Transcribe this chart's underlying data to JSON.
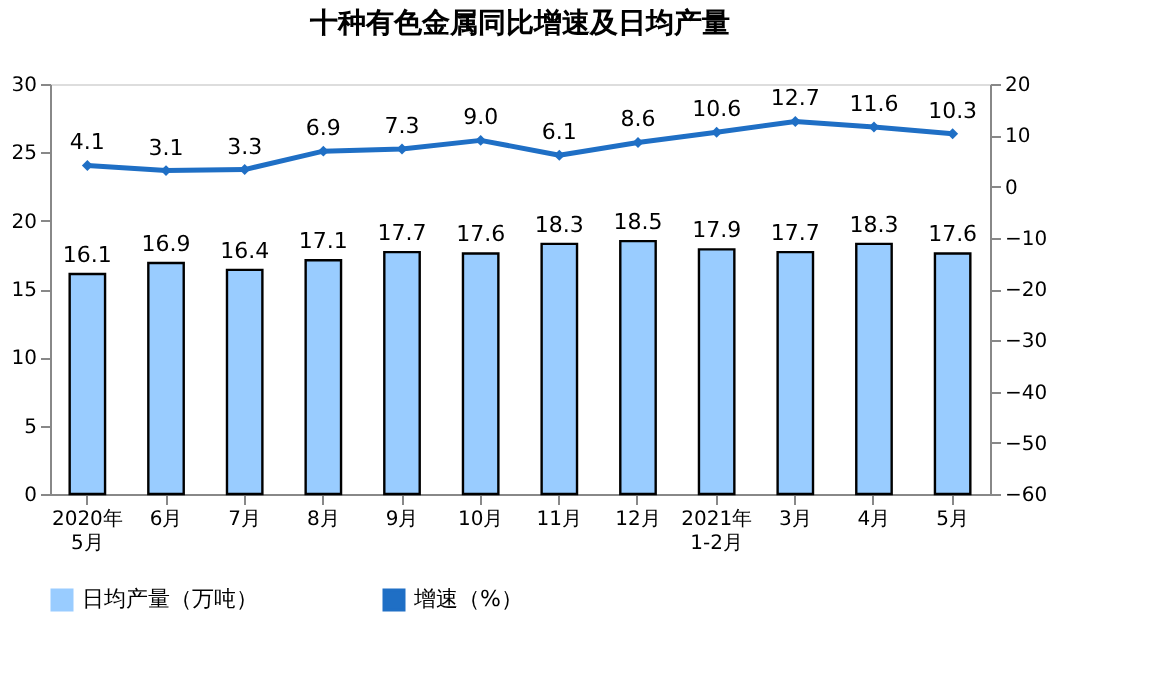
{
  "chart_data": {
    "type": "bar",
    "title": "十种有色金属同比增速及日均产量",
    "categories": [
      "2020年\n5月",
      "6月",
      "7月",
      "8月",
      "9月",
      "10月",
      "11月",
      "12月",
      "2021年\n1-2月",
      "3月",
      "4月",
      "5月"
    ],
    "series": [
      {
        "name": "日均产量（万吨）",
        "color": "#99ccff",
        "values": [
          16.1,
          16.9,
          16.4,
          17.1,
          17.7,
          17.6,
          18.3,
          18.5,
          17.9,
          17.7,
          18.3,
          17.6
        ],
        "value_labels": [
          "16.1",
          "16.9",
          "16.4",
          "17.1",
          "17.7",
          "17.6",
          "18.3",
          "18.5",
          "17.9",
          "17.7",
          "18.3",
          "17.6"
        ]
      },
      {
        "name": "增速（%）",
        "color": "#1f6fc5",
        "type": "line",
        "axis": "y2",
        "marker": "diamond",
        "values": [
          4.1,
          3.1,
          3.3,
          6.9,
          7.3,
          9.0,
          6.1,
          8.6,
          10.6,
          12.7,
          11.6,
          10.3
        ],
        "value_labels": [
          "4.1",
          "3.1",
          "3.3",
          "6.9",
          "7.3",
          "9.0",
          "6.1",
          "8.6",
          "10.6",
          "12.7",
          "11.6",
          "10.3"
        ]
      }
    ],
    "ylim": [
      0,
      30
    ],
    "yticks": [
      0,
      5,
      10,
      15,
      20,
      25,
      30
    ],
    "y2lim": [
      -60,
      20
    ],
    "y2ticks": [
      -60,
      -50,
      -40,
      -30,
      -20,
      -10,
      0,
      10,
      20
    ],
    "grid": false,
    "legend": "bottom"
  }
}
